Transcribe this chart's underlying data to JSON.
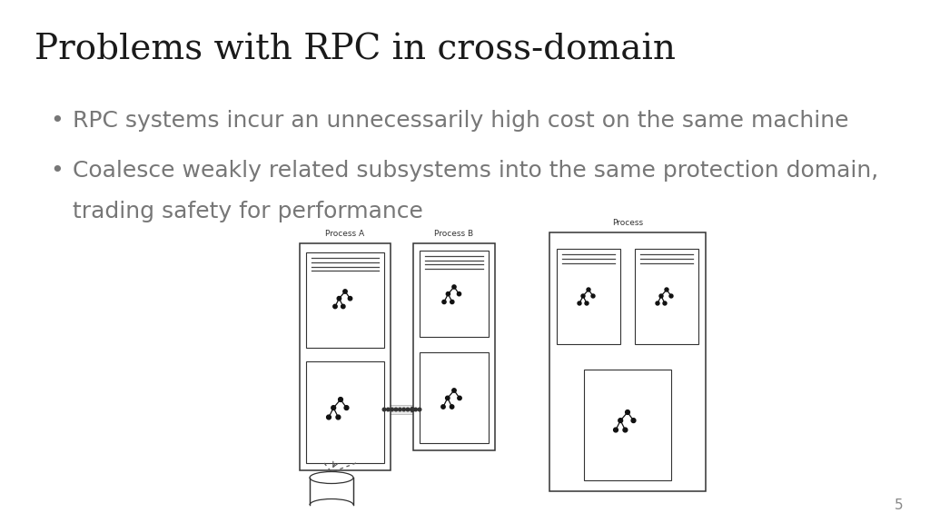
{
  "title": "Problems with RPC in cross-domain",
  "title_color": "#1a1a1a",
  "title_fontsize": 28,
  "background_color": "#ffffff",
  "bullet_color": "#777777",
  "bullet_fontsize": 18,
  "bullet1": "RPC systems incur an unnecessarily high cost on the same machine",
  "bullet2_line1": "Coalesce weakly related subsystems into the same protection domain,",
  "bullet2_line2": "trading safety for performance",
  "page_number": "5",
  "diagram": {
    "process_a_label": "Process A",
    "process_b_label": "Process B",
    "process_c_label": "Process"
  }
}
